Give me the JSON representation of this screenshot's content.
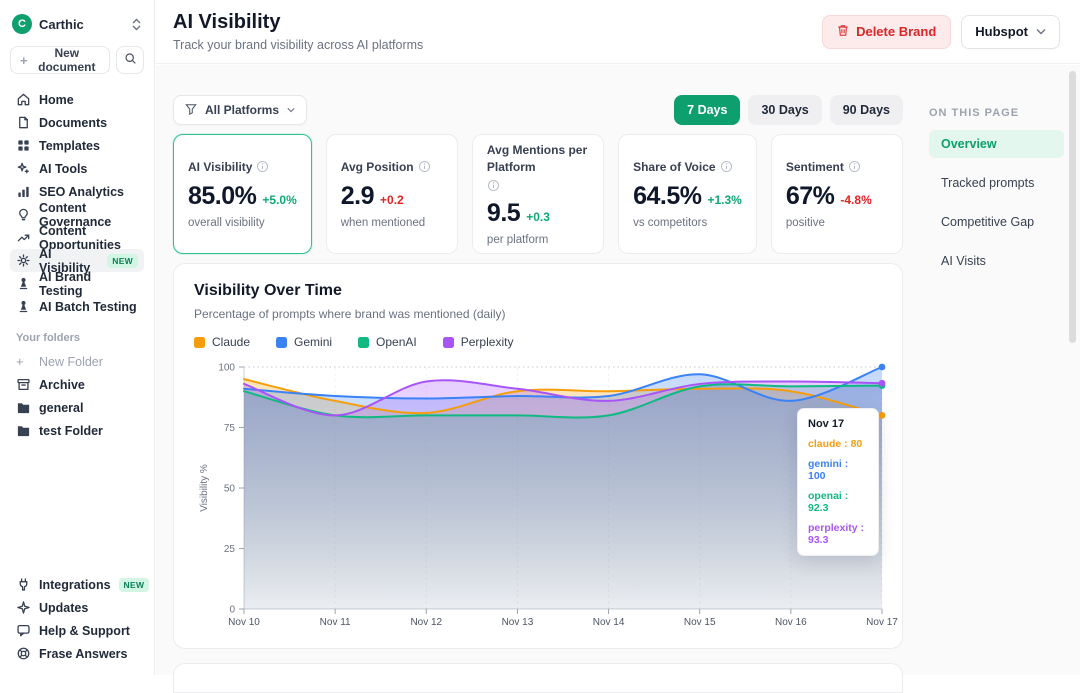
{
  "colors": {
    "accent_green": "#0e9f6e",
    "delta_up": "#0ba975",
    "delta_down": "#e02424",
    "highlight_border": "#2fc393"
  },
  "sidebar": {
    "workspace": {
      "name": "Carthic",
      "initial": "C"
    },
    "new_document_label": "New document",
    "nav": [
      {
        "label": "Home",
        "icon": "home"
      },
      {
        "label": "Documents",
        "icon": "document"
      },
      {
        "label": "Templates",
        "icon": "grid"
      },
      {
        "label": "AI Tools",
        "icon": "sparkle"
      },
      {
        "label": "SEO Analytics",
        "icon": "bar-chart"
      },
      {
        "label": "Content Governance",
        "icon": "bulb"
      },
      {
        "label": "Content Opportunities",
        "icon": "trend"
      },
      {
        "label": "AI Visibility",
        "icon": "gear",
        "badge": "NEW",
        "active": true
      },
      {
        "label": "AI Brand Testing",
        "icon": "flask"
      },
      {
        "label": "AI Batch Testing",
        "icon": "flask"
      }
    ],
    "folders_label": "Your folders",
    "new_folder_label": "New Folder",
    "folders": [
      {
        "label": "Archive",
        "icon": "archive"
      },
      {
        "label": "general",
        "icon": "folder"
      },
      {
        "label": "test Folder",
        "icon": "folder"
      }
    ],
    "footer": [
      {
        "label": "Integrations",
        "icon": "plug",
        "badge": "NEW"
      },
      {
        "label": "Updates",
        "icon": "bolt"
      },
      {
        "label": "Help & Support",
        "icon": "chat"
      },
      {
        "label": "Frase Answers",
        "icon": "ring"
      }
    ]
  },
  "header": {
    "title": "AI Visibility",
    "subtitle": "Track your brand visibility across AI platforms",
    "delete_button": "Delete Brand",
    "brand_selector": "Hubspot"
  },
  "toolbar": {
    "platform_filter": "All Platforms",
    "ranges": [
      {
        "label": "7 Days",
        "active": true
      },
      {
        "label": "30 Days",
        "active": false
      },
      {
        "label": "90 Days",
        "active": false
      }
    ]
  },
  "stats": [
    {
      "label": "AI Visibility",
      "value": "85.0%",
      "delta": "+5.0%",
      "delta_dir": "up",
      "sub": "overall visibility",
      "highlight": true
    },
    {
      "label": "Avg Position",
      "value": "2.9",
      "delta": "+0.2",
      "delta_dir": "down",
      "sub": "when mentioned",
      "highlight": false
    },
    {
      "label": "Avg Mentions per Platform",
      "value": "9.5",
      "delta": "+0.3",
      "delta_dir": "up",
      "sub": "per platform",
      "highlight": false
    },
    {
      "label": "Share of Voice",
      "value": "64.5%",
      "delta": "+1.3%",
      "delta_dir": "up",
      "sub": "vs competitors",
      "highlight": false
    },
    {
      "label": "Sentiment",
      "value": "67%",
      "delta": "-4.8%",
      "delta_dir": "down",
      "sub": "positive",
      "highlight": false
    }
  ],
  "on_this_page": {
    "title": "ON THIS PAGE",
    "items": [
      {
        "label": "Overview",
        "active": true
      },
      {
        "label": "Tracked prompts",
        "active": false
      },
      {
        "label": "Competitive Gap",
        "active": false
      },
      {
        "label": "AI Visits",
        "active": false
      }
    ]
  },
  "chart_section": {
    "title": "Visibility Over Time",
    "subtitle": "Percentage of prompts where brand was mentioned (daily)"
  },
  "chart_data": {
    "type": "area",
    "x": [
      "Nov 10",
      "Nov 11",
      "Nov 12",
      "Nov 13",
      "Nov 14",
      "Nov 15",
      "Nov 16",
      "Nov 17"
    ],
    "series": [
      {
        "name": "Claude",
        "color": "#f59e0b",
        "values": [
          95,
          86,
          81,
          90,
          90,
          91,
          90,
          80
        ]
      },
      {
        "name": "Gemini",
        "color": "#3b82f6",
        "values": [
          91,
          88,
          87,
          88,
          88,
          97,
          86,
          100
        ]
      },
      {
        "name": "OpenAI",
        "color": "#10b981",
        "values": [
          90,
          80,
          80,
          80,
          80,
          92,
          92,
          92.3
        ]
      },
      {
        "name": "Perplexity",
        "color": "#a855f7",
        "values": [
          93,
          80,
          94,
          91,
          86,
          93,
          94,
          93.3
        ]
      }
    ],
    "ylabel": "Visibility %",
    "ylim": [
      0,
      100
    ],
    "yticks": [
      0,
      25,
      50,
      75,
      100
    ],
    "grid": "faint dashed vertical at each day, dotted line at 100",
    "legend_position": "top"
  },
  "tooltip": {
    "title": "Nov 17",
    "rows": [
      {
        "label": "claude",
        "value": "80",
        "color": "#f59e0b"
      },
      {
        "label": "gemini",
        "value": "100",
        "color": "#3b82f6"
      },
      {
        "label": "openai",
        "value": "92.3",
        "color": "#10b981"
      },
      {
        "label": "perplexity",
        "value": "93.3",
        "color": "#a855f7"
      }
    ]
  }
}
